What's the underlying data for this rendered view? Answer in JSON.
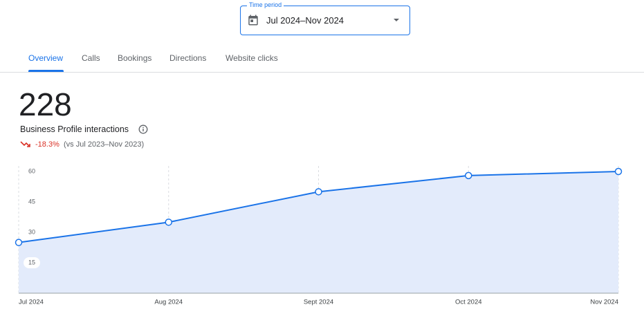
{
  "time_period": {
    "label": "Time period",
    "value": "Jul 2024–Nov 2024"
  },
  "tabs": [
    "Overview",
    "Calls",
    "Bookings",
    "Directions",
    "Website clicks"
  ],
  "summary": {
    "total": 228,
    "metric": "Business Profile interactions",
    "change": "-18.3%",
    "comparison": "(vs Jul 2023–Nov 2023)"
  },
  "chart_data": {
    "type": "line",
    "categories": [
      "Jul 2024",
      "Aug 2024",
      "Sept 2024",
      "Oct 2024",
      "Nov 2024"
    ],
    "values": [
      25,
      35,
      50,
      58,
      60
    ],
    "color": "#1a73e8",
    "fill_color": "#e3ebfb",
    "ylim": [
      0,
      60
    ],
    "yticks": [
      15,
      30,
      45,
      60
    ],
    "grid": true
  }
}
